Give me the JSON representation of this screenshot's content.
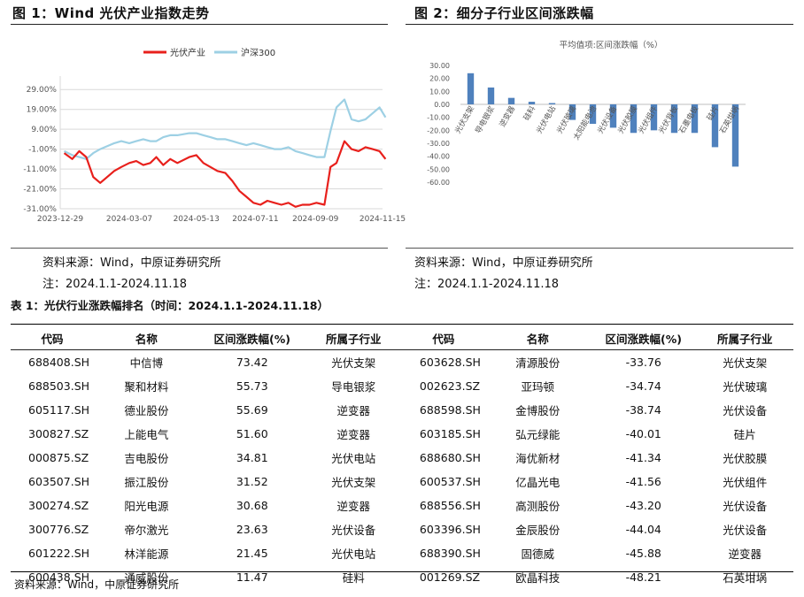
{
  "figure1": {
    "title": "图 1：Wind 光伏产业指数走势",
    "source": "资料来源：Wind，中原证券研究所",
    "note": "注：2024.1.1-2024.11.18",
    "chart_data": {
      "type": "line",
      "x_tick_labels": [
        "2023-12-29",
        "2024-03-07",
        "2024-05-13",
        "2024-07-11",
        "2024-09-09",
        "2024-11-15"
      ],
      "y_tick_labels": [
        "29.00%",
        "19.00%",
        "9.00%",
        "-1.00%",
        "-11.00%",
        "-21.00%",
        "-31.00%"
      ],
      "ylim": [
        -31,
        34
      ],
      "grid": true,
      "legend_position": "top",
      "series": [
        {
          "name": "光伏产业",
          "color": "#e8201c",
          "x": [
            "2024-01-02",
            "2024-01-10",
            "2024-01-17",
            "2024-01-24",
            "2024-01-31",
            "2024-02-07",
            "2024-02-21",
            "2024-02-28",
            "2024-03-07",
            "2024-03-14",
            "2024-03-21",
            "2024-03-28",
            "2024-04-03",
            "2024-04-10",
            "2024-04-17",
            "2024-04-24",
            "2024-05-06",
            "2024-05-13",
            "2024-05-20",
            "2024-05-27",
            "2024-06-03",
            "2024-06-11",
            "2024-06-18",
            "2024-06-25",
            "2024-07-02",
            "2024-07-09",
            "2024-07-16",
            "2024-07-23",
            "2024-07-30",
            "2024-08-06",
            "2024-08-13",
            "2024-08-20",
            "2024-08-27",
            "2024-09-03",
            "2024-09-10",
            "2024-09-18",
            "2024-09-24",
            "2024-09-30",
            "2024-10-08",
            "2024-10-15",
            "2024-10-22",
            "2024-10-29",
            "2024-11-05",
            "2024-11-12",
            "2024-11-18"
          ],
          "values": [
            -3,
            -6,
            -2,
            -5,
            -15,
            -18,
            -12,
            -10,
            -8,
            -7,
            -9,
            -8,
            -5,
            -9,
            -6,
            -8,
            -5,
            -4,
            -8,
            -10,
            -12,
            -13,
            -17,
            -22,
            -25,
            -28,
            -29,
            -27,
            -28,
            -29,
            -28,
            -30,
            -29,
            -29,
            -28,
            -29,
            -10,
            -8,
            3,
            -1,
            -2,
            0,
            -1,
            -2,
            -6
          ]
        },
        {
          "name": "沪深300",
          "color": "#9dd0e4",
          "x": [
            "2024-01-02",
            "2024-01-10",
            "2024-01-17",
            "2024-01-24",
            "2024-01-31",
            "2024-02-07",
            "2024-02-21",
            "2024-02-28",
            "2024-03-07",
            "2024-03-14",
            "2024-03-21",
            "2024-03-28",
            "2024-04-03",
            "2024-04-10",
            "2024-04-17",
            "2024-04-24",
            "2024-05-06",
            "2024-05-13",
            "2024-05-20",
            "2024-05-27",
            "2024-06-03",
            "2024-06-11",
            "2024-06-18",
            "2024-06-25",
            "2024-07-02",
            "2024-07-09",
            "2024-07-16",
            "2024-07-23",
            "2024-07-30",
            "2024-08-06",
            "2024-08-13",
            "2024-08-20",
            "2024-08-27",
            "2024-09-03",
            "2024-09-10",
            "2024-09-18",
            "2024-09-24",
            "2024-09-30",
            "2024-10-08",
            "2024-10-15",
            "2024-10-22",
            "2024-10-29",
            "2024-11-05",
            "2024-11-12",
            "2024-11-18"
          ],
          "values": [
            -2,
            -4,
            -5,
            -6,
            -3,
            -1,
            2,
            3,
            2,
            3,
            4,
            3,
            3,
            5,
            6,
            6,
            7,
            7,
            6,
            5,
            4,
            4,
            3,
            2,
            1,
            2,
            1,
            0,
            -1,
            -1,
            0,
            -2,
            -3,
            -4,
            -5,
            -5,
            8,
            20,
            24,
            14,
            13,
            14,
            17,
            20,
            15
          ]
        }
      ]
    }
  },
  "figure2": {
    "title": "图 2：细分子行业区间涨跌幅",
    "source": "资料来源：Wind，中原证券研究所",
    "note": "注：2024.1.1-2024.11.18",
    "chart_data": {
      "type": "bar",
      "title": "平均值项:区间涨跌幅（%）",
      "categories": [
        "光伏支架",
        "导电银浆",
        "逆变器",
        "硅料",
        "光伏电站",
        "光伏玻璃",
        "太阳能电池",
        "光伏设备",
        "光伏胶膜",
        "光伏组件",
        "光伏背板",
        "石墨电极",
        "硅片",
        "石英坩埚"
      ],
      "values": [
        24,
        13,
        5,
        2,
        1,
        -12,
        -15,
        -18,
        -22,
        -20,
        -22,
        -22,
        -33,
        -48
      ],
      "ylim": [
        -60,
        30
      ],
      "y_tick_labels": [
        "30.00",
        "20.00",
        "10.00",
        "0.00",
        "-10.00",
        "-20.00",
        "-30.00",
        "-40.00",
        "-50.00",
        "-60.00"
      ],
      "color": "#4f81bd"
    }
  },
  "table": {
    "title": "表 1：光伏行业涨跌幅排名（时间：2024.1.1-2024.11.18）",
    "headers": [
      "代码",
      "名称",
      "区间涨跌幅(%)",
      "所属子行业",
      "代码",
      "名称",
      "区间涨跌幅(%)",
      "所属子行业"
    ],
    "rows": [
      [
        "688408.SH",
        "中信博",
        "73.42",
        "光伏支架",
        "603628.SH",
        "清源股份",
        "-33.76",
        "光伏支架"
      ],
      [
        "688503.SH",
        "聚和材料",
        "55.73",
        "导电银浆",
        "002623.SZ",
        "亚玛顿",
        "-34.74",
        "光伏玻璃"
      ],
      [
        "605117.SH",
        "德业股份",
        "55.69",
        "逆变器",
        "688598.SH",
        "金博股份",
        "-38.74",
        "光伏设备"
      ],
      [
        "300827.SZ",
        "上能电气",
        "51.60",
        "逆变器",
        "603185.SH",
        "弘元绿能",
        "-40.01",
        "硅片"
      ],
      [
        "000875.SZ",
        "吉电股份",
        "34.81",
        "光伏电站",
        "688680.SH",
        "海优新材",
        "-41.34",
        "光伏胶膜"
      ],
      [
        "603507.SH",
        "振江股份",
        "31.52",
        "光伏支架",
        "600537.SH",
        "亿晶光电",
        "-41.56",
        "光伏组件"
      ],
      [
        "300274.SZ",
        "阳光电源",
        "30.68",
        "逆变器",
        "688556.SH",
        "高测股份",
        "-43.20",
        "光伏设备"
      ],
      [
        "300776.SZ",
        "帝尔激光",
        "23.63",
        "光伏设备",
        "603396.SH",
        "金辰股份",
        "-44.04",
        "光伏设备"
      ],
      [
        "601222.SH",
        "林洋能源",
        "21.45",
        "光伏电站",
        "688390.SH",
        "固德威",
        "-45.88",
        "逆变器"
      ],
      [
        "600438.SH",
        "通威股份",
        "11.47",
        "硅料",
        "001269.SZ",
        "欧晶科技",
        "-48.21",
        "石英坩埚"
      ]
    ],
    "source": "资料来源：Wind，中原证券研究所"
  }
}
